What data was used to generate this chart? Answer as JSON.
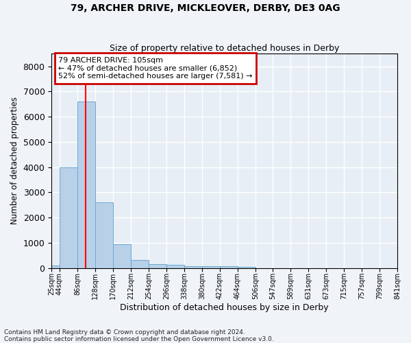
{
  "title1": "79, ARCHER DRIVE, MICKLEOVER, DERBY, DE3 0AG",
  "title2": "Size of property relative to detached houses in Derby",
  "xlabel": "Distribution of detached houses by size in Derby",
  "ylabel": "Number of detached properties",
  "footnote1": "Contains HM Land Registry data © Crown copyright and database right 2024.",
  "footnote2": "Contains public sector information licensed under the Open Government Licence v3.0.",
  "bar_color": "#b8d0e8",
  "bar_edge_color": "#6aaad4",
  "bg_color": "#f0f4f8",
  "plot_bg_color": "#e8eef5",
  "grid_color": "#ffffff",
  "red_line_x": 105,
  "annotation_text": "79 ARCHER DRIVE: 105sqm\n← 47% of detached houses are smaller (6,852)\n52% of semi-detached houses are larger (7,581) →",
  "annotation_box_color": "#ffffff",
  "annotation_box_edge": "#cc0000",
  "ylim": [
    0,
    8500
  ],
  "yticks": [
    0,
    1000,
    2000,
    3000,
    4000,
    5000,
    6000,
    7000,
    8000
  ],
  "bin_edges": [
    25,
    44,
    86,
    128,
    170,
    212,
    254,
    296,
    338,
    380,
    422,
    464,
    506,
    547,
    589,
    631,
    673,
    715,
    757,
    799,
    841
  ],
  "bar_heights": [
    100,
    4000,
    6600,
    2600,
    950,
    330,
    150,
    130,
    80,
    75,
    60,
    50,
    5,
    5,
    5,
    5,
    5,
    5,
    5,
    5
  ]
}
